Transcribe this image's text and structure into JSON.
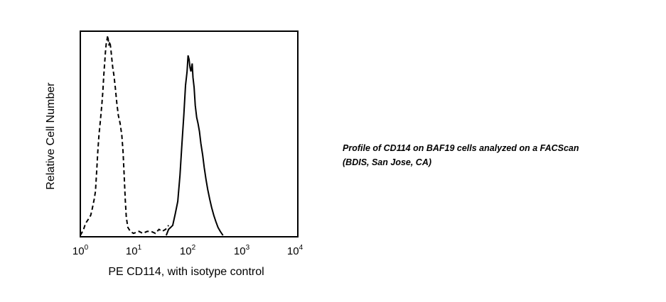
{
  "caption": {
    "line1": "Profile of CD114 on BAF19 cells analyzed on a FACScan",
    "line2": "(BDIS, San Jose, CA)"
  },
  "chart_data": {
    "type": "line",
    "xlabel": "PE CD114, with isotype control",
    "ylabel": "Relative Cell Number",
    "x_scale": "log",
    "xlim": [
      1,
      10000
    ],
    "ylim": [
      0,
      100
    ],
    "grid": false,
    "x_ticks": [
      {
        "base": "10",
        "exp": "0"
      },
      {
        "base": "10",
        "exp": "1"
      },
      {
        "base": "10",
        "exp": "2"
      },
      {
        "base": "10",
        "exp": "3"
      },
      {
        "base": "10",
        "exp": "4"
      }
    ],
    "series": [
      {
        "style": "dashed",
        "color": "#000000",
        "points": [
          [
            1.0,
            0
          ],
          [
            1.1,
            2
          ],
          [
            1.15,
            3
          ],
          [
            1.25,
            6
          ],
          [
            1.4,
            8
          ],
          [
            1.55,
            10
          ],
          [
            1.65,
            13
          ],
          [
            1.8,
            18
          ],
          [
            1.9,
            22
          ],
          [
            2.0,
            32
          ],
          [
            2.1,
            42
          ],
          [
            2.2,
            50
          ],
          [
            2.35,
            58
          ],
          [
            2.5,
            66
          ],
          [
            2.6,
            72
          ],
          [
            2.7,
            80
          ],
          [
            2.8,
            86
          ],
          [
            2.9,
            92
          ],
          [
            3.0,
            96
          ],
          [
            3.1,
            98
          ],
          [
            3.2,
            100
          ],
          [
            3.35,
            95
          ],
          [
            3.5,
            97
          ],
          [
            3.65,
            93
          ],
          [
            3.8,
            88
          ],
          [
            3.95,
            84
          ],
          [
            4.15,
            80
          ],
          [
            4.4,
            74
          ],
          [
            4.7,
            66
          ],
          [
            5.0,
            60
          ],
          [
            5.4,
            56
          ],
          [
            5.8,
            50
          ],
          [
            6.1,
            42
          ],
          [
            6.4,
            30
          ],
          [
            6.7,
            18
          ],
          [
            7.0,
            9
          ],
          [
            7.5,
            4
          ],
          [
            8.3,
            2
          ],
          [
            9.5,
            1
          ],
          [
            12,
            2
          ],
          [
            14,
            1
          ],
          [
            17,
            2
          ],
          [
            20,
            2
          ],
          [
            24,
            1
          ],
          [
            28,
            3
          ],
          [
            32,
            2
          ],
          [
            37,
            3
          ],
          [
            42,
            5
          ]
        ]
      },
      {
        "style": "solid",
        "color": "#000000",
        "points": [
          [
            38,
            0
          ],
          [
            42,
            3
          ],
          [
            46,
            4
          ],
          [
            50,
            5
          ],
          [
            56,
            11
          ],
          [
            62,
            17
          ],
          [
            68,
            30
          ],
          [
            74,
            46
          ],
          [
            80,
            60
          ],
          [
            86,
            75
          ],
          [
            92,
            82
          ],
          [
            96,
            90
          ],
          [
            100,
            88
          ],
          [
            104,
            84
          ],
          [
            108,
            82
          ],
          [
            114,
            86
          ],
          [
            118,
            79
          ],
          [
            124,
            74
          ],
          [
            130,
            65
          ],
          [
            138,
            59
          ],
          [
            146,
            56
          ],
          [
            155,
            52
          ],
          [
            165,
            46
          ],
          [
            178,
            40
          ],
          [
            190,
            34
          ],
          [
            205,
            28
          ],
          [
            220,
            23
          ],
          [
            240,
            18
          ],
          [
            260,
            14
          ],
          [
            285,
            10
          ],
          [
            310,
            7
          ],
          [
            340,
            4
          ],
          [
            375,
            2
          ],
          [
            420,
            0
          ]
        ]
      }
    ]
  }
}
